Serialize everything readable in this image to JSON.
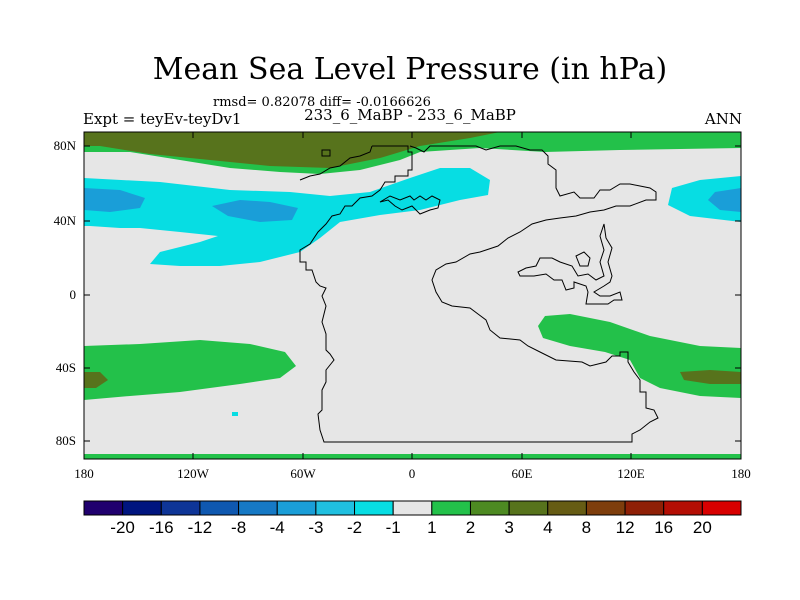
{
  "title": "Mean Sea Level Pressure (in hPa)",
  "stats": "rmsd= 0.82078 diff= -0.0166626",
  "left_label": "Expt = teyEv-teyDv1",
  "center_label": "233_6_MaBP - 233_6_MaBP",
  "right_label": "ANN",
  "y_ticks": [
    "80N",
    "40N",
    "0",
    "40S",
    "80S"
  ],
  "x_ticks": [
    "180",
    "120W",
    "60W",
    "0",
    "60E",
    "120E",
    "180"
  ],
  "colorbar": {
    "colors": [
      "#20006e",
      "#00157f",
      "#0e3597",
      "#0f58b0",
      "#1679c5",
      "#1a9ed8",
      "#20c0e0",
      "#07dde3",
      "#e6e6e6",
      "#23c14a",
      "#4d8a22",
      "#57731c",
      "#665c14",
      "#7e3e0c",
      "#8f2006",
      "#b40e04",
      "#d80000"
    ],
    "labels": [
      "-20",
      "-16",
      "-12",
      "-8",
      "-4",
      "-3",
      "-2",
      "-1",
      "1",
      "2",
      "3",
      "4",
      "8",
      "12",
      "16",
      "20"
    ]
  },
  "palette": {
    "background": "#e6e6e6",
    "cyan": "#07dde3",
    "light_blue": "#1a9ed8",
    "green": "#23c14a",
    "olive": "#57731c"
  }
}
